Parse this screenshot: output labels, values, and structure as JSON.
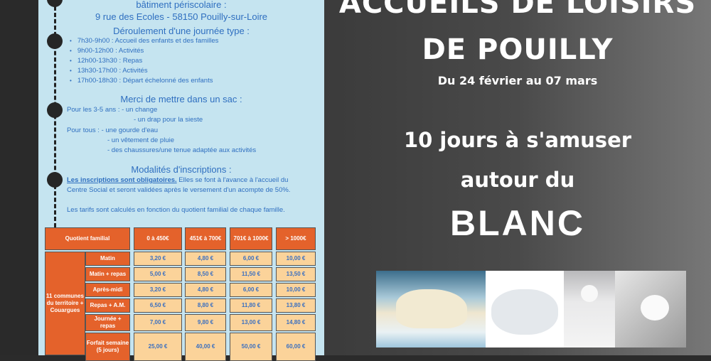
{
  "info": {
    "location_heading": "bâtiment périscolaire :",
    "address": "9 rue des Ecoles - 58150 Pouilly-sur-Loire",
    "day_heading": "Déroulement d'une journée type :",
    "schedule": [
      "7h30-9h00 : Accueil des enfants et des familles",
      "9h00-12h00 : Activités",
      "12h00-13h30 : Repas",
      "13h30-17h00 : Activités",
      "17h00-18h30 : Départ échelonné des enfants"
    ],
    "bag_heading": "Merci de mettre dans un sac :",
    "bag_lines": [
      "Pour les 3-5 ans :  - un change",
      "- un drap pour la sieste",
      "Pour tous : - une gourde d'eau",
      "- un vêtement de pluie",
      "- des chaussures/une tenue adaptée aux activités"
    ],
    "reg_heading": "Modalités d'inscriptions :",
    "reg_underlined": "Les inscriptions sont obligatoires.",
    "reg_text": " Elles se font à l'avance à l'accueil du Centre Social et seront validées après le versement d'un acompte de 50%.",
    "reg_text2": "Les tarifs sont calculés en fonction du quotient familial de chaque famille."
  },
  "table": {
    "header": [
      "Quotient familial",
      "0 à 450€",
      "451€ à 700€",
      "701€ à 1000€",
      "> 1000€"
    ],
    "group_label": "11 communes du territoire + Couargues",
    "rows": [
      {
        "label": "Matin",
        "values": [
          "3,20 €",
          "4,80 €",
          "6,00 €",
          "10,00 €"
        ]
      },
      {
        "label": "Matin + repas",
        "values": [
          "5,00 €",
          "8,50 €",
          "11,50 €",
          "13,50 €"
        ]
      },
      {
        "label": "Après-midi",
        "values": [
          "3,20 €",
          "4,80 €",
          "6,00 €",
          "10,00 €"
        ]
      },
      {
        "label": "Repas + A.M.",
        "values": [
          "6,50 €",
          "8,80 €",
          "11,80 €",
          "13,80 €"
        ]
      },
      {
        "label": "Journée + repas",
        "values": [
          "7,00 €",
          "9,80 €",
          "13,00 €",
          "14,80 €"
        ]
      },
      {
        "label": "Forfait semaine (5 jours)",
        "values": [
          "25,00 €",
          "40,00 €",
          "50,00 €",
          "60,00 €"
        ]
      }
    ]
  },
  "poster": {
    "title_line1": "ACCUEILS DE LOISIRS",
    "title_line2": "DE POUILLY",
    "dates": "Du 24 février au 07 mars",
    "tagline1": "10 jours à s'amuser",
    "tagline2": "autour du",
    "theme": "BLANC"
  },
  "colors": {
    "panel": "#c5e4f0",
    "text_blue": "#2f6fc0",
    "table_orange": "#e4622b",
    "table_cell": "#fbd39a"
  }
}
